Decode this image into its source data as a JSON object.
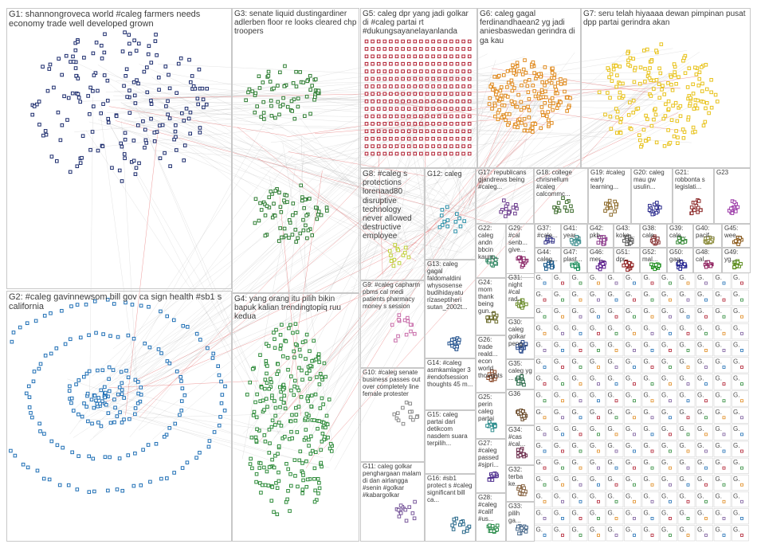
{
  "groups": [
    {
      "id": "G1",
      "label": "G1: shannongroveca world #caleg farmers needs economy trade well developed grown",
      "color": "#1a2a6c"
    },
    {
      "id": "G2",
      "label": "G2: #caleg gavinnewsom bill gov ca sign health #sb1 s california",
      "color": "#1f6fb5"
    },
    {
      "id": "G3",
      "label": "G3: senate liquid dustingardiner adlerben floor re looks cleared chp troopers",
      "color": "#2e7d32"
    },
    {
      "id": "G4",
      "label": "G4: yang orang itu pilih bikin bapuk kalian trendingtopiq ruu kedua",
      "color": "#2e8b3a"
    },
    {
      "id": "G5",
      "label": "G5: caleg dpr yang jadi golkar di #caleg partai rt #dukungsayanelayanlanda",
      "color": "#b01c2e"
    },
    {
      "id": "G6",
      "label": "G6: caleg gagal ferdinandhaean2 yg jadi aniesbaswedan gerindra di ga kau",
      "color": "#e08a1e"
    },
    {
      "id": "G7",
      "label": "G7: seru telah hiyaaaa dewan pimpinan pusat dpp partai gerindra akan",
      "color": "#e8c21a"
    },
    {
      "id": "G8",
      "label": "G8: #caleg s protections lorenaad80 disruptive technology never allowed destructive employee",
      "color": "#c0d13a"
    },
    {
      "id": "G9",
      "label": "G9: #caleg capharm pbms cal medi patients pharmacy money s session",
      "color": "#c76aa8"
    },
    {
      "id": "G10",
      "label": "G10: #caleg senate business passes out over completely line female protester",
      "color": "#8a8a8a"
    },
    {
      "id": "G11",
      "label": "G11: caleg golkar penghargaan malam di dan airlangga #senin #golkar #kabargolkar",
      "color": "#7a5a9c"
    },
    {
      "id": "G12",
      "label": "G12: caleg",
      "color": "#2a8fa8"
    },
    {
      "id": "G13",
      "label": "G13: caleg gagal faldomaldini whysosense budihidayatu rizaseptiheri sutan_2002t...",
      "color": "#1f4f8c"
    },
    {
      "id": "G14",
      "label": "G14: #caleg asmkamlager 3 #endofsession thoughts 45 m...",
      "color": "#4a7a3a"
    },
    {
      "id": "G15",
      "label": "G15: caleg partai dari detikcom nasdem suara terpilih...",
      "color": "#8c2a5a"
    },
    {
      "id": "G16",
      "label": "G16: #sb1 protect s #caleg significant bill ca...",
      "color": "#2a6a8c"
    },
    {
      "id": "G17",
      "label": "G17: republicans gjandrews being #caleg...",
      "color": "#6a3a8c"
    },
    {
      "id": "G18",
      "label": "G18: college chrisnellum #caleg calcommc...",
      "color": "#3a6a2a"
    },
    {
      "id": "G19",
      "label": "G19: #caleg early learning...",
      "color": "#8c6a2a"
    },
    {
      "id": "G20",
      "label": "G20: caleg mau gw usulin...",
      "color": "#2a2a8c"
    },
    {
      "id": "G21",
      "label": "G21: robbonta s legislati...",
      "color": "#8c2a2a"
    },
    {
      "id": "G22",
      "label": "G22: caleg andn bbcin kaum...",
      "color": "#3a8c6a"
    },
    {
      "id": "G23",
      "label": "G23",
      "color": "#9c3aa8"
    },
    {
      "id": "G24",
      "label": "G24: mom thank being gun...",
      "color": "#6a6a2a"
    },
    {
      "id": "G25",
      "label": "G25: perin caleg partai",
      "color": "#2a8c8c"
    },
    {
      "id": "G26",
      "label": "G26: trade reald... econ world thoughts",
      "color": "#8c4a2a"
    },
    {
      "id": "G27",
      "label": "G27: #caleg passed #sjpri...",
      "color": "#4a2a8c"
    },
    {
      "id": "G28",
      "label": "G28: #caleg #calif #us...",
      "color": "#2a8c4a"
    },
    {
      "id": "G29",
      "label": "G29: #cal senb... give...",
      "color": "#8c2a6a"
    },
    {
      "id": "G30",
      "label": "G30: caleg golkar peng...",
      "color": "#2a4a8c"
    },
    {
      "id": "G31",
      "label": "G31: night #cal rad...",
      "color": "#6a8c2a"
    },
    {
      "id": "G32",
      "label": "G32: terba ke...",
      "color": "#8c6a4a"
    },
    {
      "id": "G33",
      "label": "G33: pilih ga...",
      "color": "#4a6a8c"
    },
    {
      "id": "G34",
      "label": "G34: #cas #cal...",
      "color": "#6a2a4a"
    },
    {
      "id": "G35",
      "label": "G35: caleg yg ...",
      "color": "#2a6a4a"
    },
    {
      "id": "G36",
      "label": "G36",
      "color": "#6a4a2a"
    },
    {
      "id": "G37",
      "label": "G37: #cale...",
      "color": "#3a3a8c"
    },
    {
      "id": "G38",
      "label": "G38: cale...",
      "color": "#8c3a3a"
    },
    {
      "id": "G39",
      "label": "G39: cale...",
      "color": "#3a8c3a"
    },
    {
      "id": "G40",
      "label": "G40: pacif...",
      "color": "#8c8c3a"
    },
    {
      "id": "G41",
      "label": "G41: year...",
      "color": "#3a8c8c"
    },
    {
      "id": "G42",
      "label": "G42: pkb...",
      "color": "#8c3a8c"
    },
    {
      "id": "G43",
      "label": "G43: koko...",
      "color": "#5a5a5a"
    },
    {
      "id": "G44",
      "label": "G44: caleg...",
      "color": "#1a5a8c"
    },
    {
      "id": "G45",
      "label": "G45: wee...",
      "color": "#8c5a1a"
    },
    {
      "id": "G46",
      "label": "G46: mer...",
      "color": "#5a1a8c"
    },
    {
      "id": "G47",
      "label": "G47: plast...",
      "color": "#1a8c5a"
    },
    {
      "id": "G48",
      "label": "G48: cal...",
      "color": "#8c1a5a"
    },
    {
      "id": "G49",
      "label": "G49: yg...",
      "color": "#5a8c1a"
    },
    {
      "id": "G50",
      "label": "G50: gag...",
      "color": "#1a1a8c"
    },
    {
      "id": "G51",
      "label": "G51: dpr...",
      "color": "#8c1a1a"
    },
    {
      "id": "G52",
      "label": "G52: mal...",
      "color": "#1a8c1a"
    },
    {
      "id": "G5x",
      "label": "G5 nd...",
      "color": "#5a3a6a"
    }
  ]
}
